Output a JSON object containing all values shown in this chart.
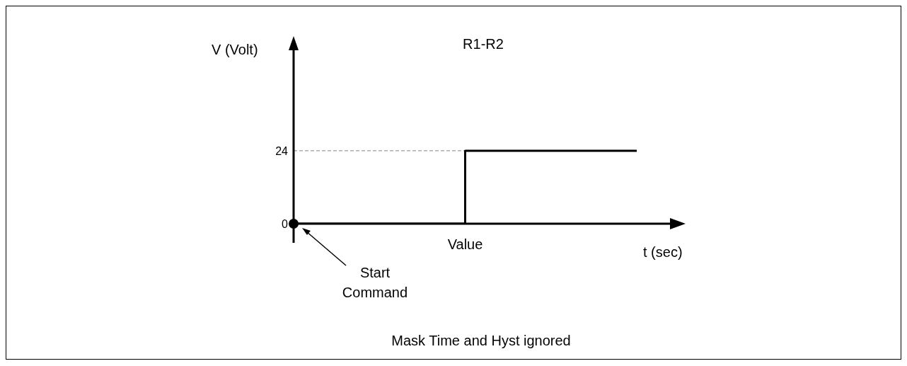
{
  "chart_data": {
    "type": "step",
    "title": "R1-R2",
    "xlabel": "t (sec)",
    "ylabel": "V (Volt)",
    "categories": [
      null,
      "Value",
      null
    ],
    "series": [
      {
        "color": "#000000",
        "values": [
          0,
          24,
          24
        ]
      }
    ],
    "ylim": [
      0,
      54
    ],
    "yticks": [
      0,
      24
    ],
    "grid": false,
    "legend": false,
    "ref_lines": [
      {
        "axis": "y",
        "value": 24,
        "color": "#808080",
        "line_style": "dashed"
      }
    ],
    "annotations": [
      "Start Command",
      "Mask Time and Hyst ignored"
    ]
  }
}
